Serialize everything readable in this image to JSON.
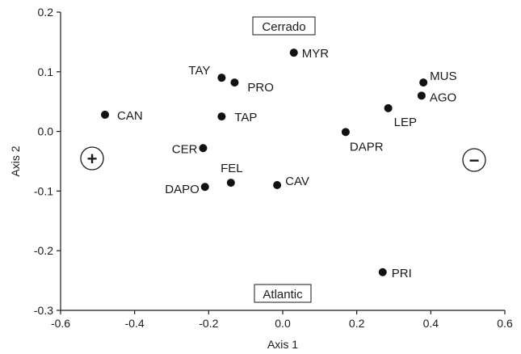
{
  "chart_data": {
    "type": "scatter",
    "xlabel": "Axis 1",
    "ylabel": "Axis 2",
    "xlim": [
      -0.6,
      0.6
    ],
    "ylim": [
      -0.3,
      0.2
    ],
    "xticks": [
      -0.6,
      -0.4,
      -0.2,
      0.0,
      0.2,
      0.4,
      0.6
    ],
    "yticks": [
      -0.3,
      -0.2,
      -0.1,
      0.0,
      0.1,
      0.2
    ],
    "xtick_labels": [
      "-0.6",
      "-0.4",
      "-0.2",
      "0.0",
      "0.2",
      "0.4",
      "0.6"
    ],
    "ytick_labels": [
      "-0.3",
      "-0.2",
      "-0.1",
      "0.0",
      "0.1",
      "0.2"
    ],
    "grid": false,
    "points": [
      {
        "label": "MYR",
        "x": 0.03,
        "y": 0.132
      },
      {
        "label": "TAY",
        "x": -0.165,
        "y": 0.09
      },
      {
        "label": "PRO",
        "x": -0.13,
        "y": 0.082
      },
      {
        "label": "CAN",
        "x": -0.48,
        "y": 0.028
      },
      {
        "label": "TAP",
        "x": -0.165,
        "y": 0.025
      },
      {
        "label": "CER",
        "x": -0.215,
        "y": -0.028
      },
      {
        "label": "FEL",
        "x": -0.14,
        "y": -0.086
      },
      {
        "label": "DAPO",
        "x": -0.21,
        "y": -0.093
      },
      {
        "label": "CAV",
        "x": -0.015,
        "y": -0.09
      },
      {
        "label": "MUS",
        "x": 0.38,
        "y": 0.082
      },
      {
        "label": "AGO",
        "x": 0.375,
        "y": 0.06
      },
      {
        "label": "LEP",
        "x": 0.285,
        "y": 0.039
      },
      {
        "label": "DAPR",
        "x": 0.17,
        "y": -0.001
      },
      {
        "label": "PRI",
        "x": 0.27,
        "y": -0.236
      }
    ],
    "annotations": {
      "top_box": "Cerrado",
      "bottom_box": "Atlantic",
      "left_sign": "+",
      "right_sign": "−"
    }
  }
}
